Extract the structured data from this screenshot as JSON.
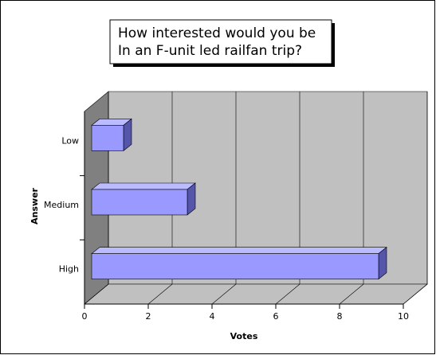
{
  "chart_data": {
    "type": "bar3d",
    "title": [
      "How interested would you be",
      "In an F-unit led railfan trip?"
    ],
    "x_label": "Votes",
    "y_label": "Answer",
    "categories": [
      "Low",
      "Medium",
      "High"
    ],
    "values": [
      1,
      3,
      9
    ],
    "color": "#9999ff",
    "xlim": [
      0,
      10
    ],
    "xticks": [
      0,
      2,
      4,
      6,
      8,
      10
    ],
    "grid": true
  }
}
